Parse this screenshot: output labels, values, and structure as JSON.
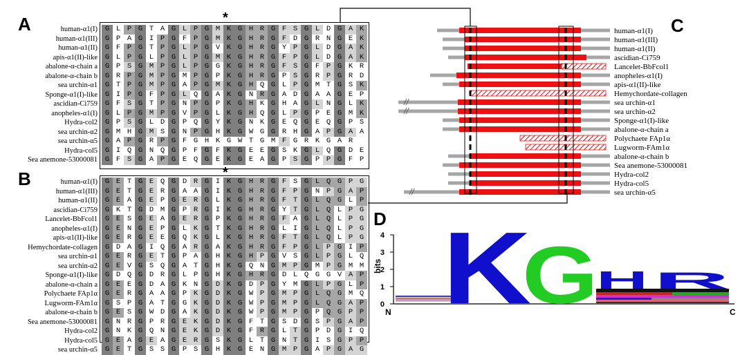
{
  "panels": {
    "a": "A",
    "b": "B",
    "c": "C",
    "d": "D"
  },
  "colors": {
    "red": "#ee1111",
    "gray": "#a6a6a6",
    "dark_gray": "#7f7f7f",
    "light_gray": "#d4d4d4",
    "logo_k": "#1010cc",
    "logo_g": "#22cc22"
  },
  "panel_a": {
    "star": "*",
    "labels": [
      "human-α1(I)",
      "human-α1(III)",
      "human-α1(II)",
      "apis-α1(II)-like",
      "abalone-α-chain a",
      "abalone-α-chain b",
      "sea urchin-α1",
      "Sponge-α1(I)-like",
      "ascidian-Ci759",
      "anopheles-α1(I)",
      "Hydra-col2",
      "sea urchin-α2",
      "sea urchin-α5",
      "Hydra-col5",
      "Sea anemone-53000081"
    ],
    "rows": [
      [
        "G",
        "L",
        "P",
        "G",
        "T",
        "A",
        "G",
        "L",
        "P",
        "G",
        "M",
        "K",
        "G",
        "H",
        "R",
        "G",
        "F",
        "S",
        "G",
        "L",
        "D",
        "G",
        "A",
        "K"
      ],
      [
        "G",
        "P",
        "A",
        "G",
        "I",
        "P",
        "G",
        "F",
        "P",
        "G",
        "M",
        "K",
        "G",
        "H",
        "R",
        "G",
        "F",
        "D",
        "G",
        "R",
        "N",
        "G",
        "E",
        "K"
      ],
      [
        "G",
        "F",
        "P",
        "G",
        "T",
        "P",
        "G",
        "L",
        "P",
        "G",
        "V",
        "K",
        "G",
        "H",
        "R",
        "G",
        "Y",
        "P",
        "G",
        "L",
        "D",
        "G",
        "A",
        "K"
      ],
      [
        "G",
        "L",
        "P",
        "G",
        "L",
        "P",
        "G",
        "L",
        "P",
        "G",
        "M",
        "K",
        "G",
        "H",
        "R",
        "G",
        "F",
        "P",
        "G",
        "L",
        "D",
        "G",
        "A",
        "K"
      ],
      [
        "G",
        "P",
        "S",
        "G",
        "M",
        "P",
        "G",
        "L",
        "P",
        "G",
        "G",
        "K",
        "G",
        "H",
        "R",
        "G",
        "F",
        "S",
        "G",
        "F",
        "P",
        "G",
        "K",
        "R"
      ],
      [
        "G",
        "R",
        "P",
        "G",
        "M",
        "P",
        "G",
        "M",
        "P",
        "G",
        "P",
        "K",
        "G",
        "H",
        "R",
        "G",
        "P",
        "S",
        "G",
        "R",
        "P",
        "G",
        "R",
        "D"
      ],
      [
        "G",
        "T",
        "P",
        "G",
        "M",
        "P",
        "G",
        "A",
        "P",
        "G",
        "M",
        "K",
        "G",
        "H",
        "Q",
        "G",
        "L",
        "P",
        "G",
        "M",
        "T",
        "G",
        "S",
        "K"
      ],
      [
        "G",
        "I",
        "P",
        "G",
        "F",
        "P",
        "G",
        "L",
        "Q",
        "G",
        "A",
        "K",
        "G",
        "N",
        "R",
        "G",
        "A",
        "D",
        "G",
        "A",
        "A",
        "G",
        "E",
        "P"
      ],
      [
        "G",
        "F",
        "S",
        "G",
        "T",
        "P",
        "G",
        "N",
        "P",
        "G",
        "P",
        "K",
        "G",
        "H",
        "K",
        "G",
        "H",
        "A",
        "G",
        "L",
        "N",
        "G",
        "L",
        "K"
      ],
      [
        "G",
        "L",
        "P",
        "G",
        "M",
        "P",
        "G",
        "V",
        "P",
        "G",
        "L",
        "K",
        "G",
        "H",
        "Q",
        "G",
        "L",
        "P",
        "G",
        "P",
        "E",
        "G",
        "M",
        "K"
      ],
      [
        "G",
        "P",
        "S",
        "G",
        "L",
        "D",
        "G",
        "P",
        "Q",
        "G",
        "Y",
        "K",
        "G",
        "N",
        "K",
        "G",
        "E",
        "Q",
        "G",
        "E",
        "Q",
        "G",
        "P",
        "S"
      ],
      [
        "G",
        "M",
        "H",
        "G",
        "M",
        "S",
        "G",
        "N",
        "P",
        "G",
        "H",
        "K",
        "G",
        "W",
        "G",
        "G",
        "R",
        "H",
        "G",
        "A",
        "P",
        "G",
        "A",
        "A"
      ],
      [
        "G",
        "A",
        "P",
        "G",
        "R",
        "P",
        "G",
        "F",
        "G",
        "H",
        "K",
        "G",
        "W",
        "T",
        "G",
        "M",
        "F",
        "G",
        "R",
        "K",
        "G",
        "A",
        "R",
        " "
      ],
      [
        "G",
        "I",
        "Q",
        "G",
        "N",
        "Q",
        "G",
        "P",
        "F",
        "G",
        "F",
        "K",
        "G",
        "E",
        "E",
        "G",
        "S",
        "K",
        "G",
        "L",
        "Q",
        "G",
        "D",
        "E"
      ],
      [
        "G",
        "F",
        "S",
        "G",
        "A",
        "P",
        "G",
        "E",
        "Q",
        "G",
        "E",
        "K",
        "G",
        "E",
        "A",
        "G",
        "P",
        "S",
        "G",
        "P",
        "P",
        "G",
        "F",
        "P"
      ]
    ]
  },
  "panel_b": {
    "star": "*",
    "labels": [
      "human-α1(I)",
      "human-α1(III)",
      "human-α1(II)",
      "ascidian-Ci759",
      "Lancelet-BbFcol1",
      "anopheles-α1(I)",
      "apis-α1(II)-like",
      "Hemychordate-collagen",
      "sea urchin-α1",
      "sea urchin-α2",
      "Sponge-α1(I)-like",
      "abalone-α-chain a",
      "Polychaete FAp1α",
      "Lugworm-FAm1α",
      "abalone-α-chain b",
      "Sea anemone-53000081",
      "Hydra-col2",
      "Hydra-col5",
      "sea urchin-α5"
    ],
    "rows": [
      [
        "G",
        "E",
        "T",
        "G",
        "E",
        "Q",
        "G",
        "D",
        "R",
        "G",
        "I",
        "K",
        "G",
        "H",
        "R",
        "G",
        "F",
        "S",
        "G",
        "L",
        "Q",
        "G",
        "P",
        "G"
      ],
      [
        "G",
        "E",
        "T",
        "G",
        "E",
        "R",
        "G",
        "A",
        "A",
        "G",
        "I",
        "K",
        "G",
        "H",
        "R",
        "G",
        "F",
        "P",
        "G",
        "N",
        "P",
        "G",
        "A",
        "P"
      ],
      [
        "G",
        "E",
        "A",
        "G",
        "E",
        "P",
        "G",
        "E",
        "R",
        "G",
        "L",
        "K",
        "G",
        "H",
        "R",
        "G",
        "F",
        "T",
        "G",
        "L",
        "Q",
        "G",
        "L",
        "P"
      ],
      [
        "G",
        "K",
        "T",
        "G",
        "D",
        "M",
        "G",
        "P",
        "R",
        "G",
        "I",
        "K",
        "G",
        "H",
        "R",
        "G",
        "Y",
        "T",
        "G",
        "L",
        "Q",
        "L",
        "P",
        "G"
      ],
      [
        "G",
        "E",
        "S",
        "G",
        "E",
        "A",
        "G",
        "E",
        "R",
        "G",
        "P",
        "K",
        "G",
        "H",
        "R",
        "G",
        "F",
        "A",
        "G",
        "L",
        "Q",
        "L",
        "P",
        "G"
      ],
      [
        "G",
        "E",
        "N",
        "G",
        "E",
        "P",
        "G",
        "L",
        "K",
        "G",
        "T",
        "K",
        "G",
        "H",
        "R",
        "G",
        "L",
        "I",
        "G",
        "L",
        "Q",
        "L",
        "P",
        "G"
      ],
      [
        "G",
        "E",
        "R",
        "G",
        "E",
        "E",
        "G",
        "Q",
        "K",
        "G",
        "L",
        "K",
        "G",
        "H",
        "R",
        "G",
        "F",
        "T",
        "G",
        "L",
        "Q",
        "L",
        "P",
        "G"
      ],
      [
        "G",
        "D",
        "A",
        "G",
        "I",
        "Q",
        "G",
        "A",
        "R",
        "G",
        "A",
        "K",
        "G",
        "H",
        "R",
        "G",
        "F",
        "P",
        "G",
        "L",
        "P",
        "G",
        "I",
        "P"
      ],
      [
        "G",
        "E",
        "R",
        "G",
        "E",
        "T",
        "G",
        "P",
        "A",
        "G",
        "H",
        "K",
        "G",
        "H",
        "P",
        "G",
        "V",
        "S",
        "G",
        "L",
        "P",
        "G",
        "L",
        "Q"
      ],
      [
        "G",
        "E",
        "V",
        "G",
        "S",
        "Q",
        "G",
        "A",
        "T",
        "G",
        "H",
        "K",
        "G",
        "Q",
        "N",
        "G",
        "M",
        "P",
        "G",
        "M",
        "P",
        "G",
        "M",
        "M"
      ],
      [
        "G",
        "D",
        "Q",
        "G",
        "D",
        "R",
        "G",
        "L",
        "P",
        "G",
        "H",
        "K",
        "G",
        "H",
        "R",
        "G",
        "D",
        "L",
        "Q",
        "G",
        "G",
        "V",
        "A",
        "P"
      ],
      [
        "G",
        "E",
        "E",
        "G",
        "D",
        "A",
        "G",
        "K",
        "N",
        "G",
        "D",
        "K",
        "G",
        "D",
        "P",
        "G",
        "Y",
        "M",
        "G",
        "L",
        "P",
        "G",
        "L",
        "P"
      ],
      [
        "G",
        "E",
        "R",
        "G",
        "A",
        "A",
        "G",
        "P",
        "K",
        "G",
        "D",
        "K",
        "G",
        "W",
        "P",
        "G",
        "M",
        "P",
        "G",
        "L",
        "Q",
        "G",
        "M",
        "Q"
      ],
      [
        "G",
        "S",
        "P",
        "G",
        "A",
        "T",
        "G",
        "G",
        "K",
        "G",
        "D",
        "K",
        "G",
        "W",
        "P",
        "G",
        "M",
        "P",
        "G",
        "L",
        "Q",
        "G",
        "A",
        "P"
      ],
      [
        "G",
        "E",
        "S",
        "G",
        "W",
        "D",
        "G",
        "A",
        "K",
        "G",
        "D",
        "K",
        "G",
        "W",
        "P",
        "G",
        "M",
        "P",
        "G",
        "P",
        "Q",
        "G",
        "P",
        "P"
      ],
      [
        "G",
        "N",
        "R",
        "G",
        "P",
        "R",
        "G",
        "E",
        "K",
        "G",
        "D",
        "K",
        "G",
        "F",
        "T",
        "G",
        "S",
        "D",
        "G",
        "S",
        "P",
        "G",
        "A",
        "P"
      ],
      [
        "G",
        "N",
        "K",
        "G",
        "Q",
        "N",
        "G",
        "E",
        "K",
        "G",
        "D",
        "K",
        "G",
        "F",
        "R",
        "G",
        "L",
        "T",
        "G",
        "P",
        "D",
        "G",
        "I",
        "Q"
      ],
      [
        "G",
        "E",
        "A",
        "G",
        "E",
        "A",
        "G",
        "E",
        "R",
        "G",
        "S",
        "K",
        "G",
        "L",
        "T",
        "G",
        "N",
        "T",
        "G",
        "I",
        "S",
        "G",
        "P",
        "P"
      ],
      [
        "G",
        "E",
        "T",
        "G",
        "S",
        "S",
        "G",
        "P",
        "S",
        "G",
        "H",
        "K",
        "G",
        "E",
        "N",
        "G",
        "M",
        "P",
        "G",
        "A",
        "P",
        "G",
        "A",
        "G"
      ]
    ]
  },
  "panel_c": {
    "labels": [
      "human-α1(I)",
      "human-α1(III)",
      "human-α1(II)",
      "ascidian-Ci759",
      "Lancelet-BbFcol1",
      "anopheles-α1(I)",
      "apis-α1(II)-like",
      "Hemychordate-collagen",
      "sea urchin-α1",
      "sea urchin-α2",
      "Sponge-α1(I)-like",
      "abalone-α-chain a",
      "Polychaete FAp1α",
      "Lugworm-FAm1α",
      "abalone-α-chain b",
      "Sea anemone-53000081",
      "Hydra-col2",
      "Hydra-col5",
      "sea urchin-α5"
    ],
    "break_mark": "//"
  },
  "panel_d": {
    "ylabel": "bits",
    "ticks": [
      "0",
      "1",
      "2",
      "3",
      "4"
    ],
    "n_label": "N",
    "c_label": "C",
    "logo_letters": {
      "k": "K",
      "g": "G",
      "h": "H",
      "r": "R"
    }
  }
}
